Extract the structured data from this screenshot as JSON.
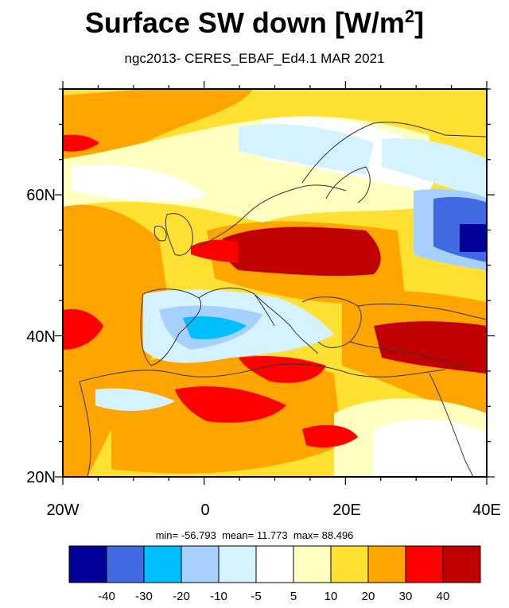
{
  "title": "Surface SW down [W/m",
  "title_sup": "2",
  "title_end": "]",
  "subtitle": "ngc2013- CERES_EBAF_Ed4.1  MAR 2021",
  "axes": {
    "lat_labels": [
      "20N",
      "40N",
      "60N"
    ],
    "lon_labels": [
      "20W",
      "0",
      "20E",
      "40E"
    ]
  },
  "stats": {
    "min_label": "min=",
    "min": "-56.793",
    "mean_label": "mean=",
    "mean": "11.773",
    "max_label": "max=",
    "max": "88.496"
  },
  "colorbar": {
    "colors": [
      "#000099",
      "#4169e1",
      "#00bfff",
      "#a6d0ff",
      "#d4f2ff",
      "#ffffff",
      "#ffffc0",
      "#ffe033",
      "#ffa500",
      "#ff0000",
      "#c00000"
    ],
    "tick_labels": [
      "-40",
      "-30",
      "-20",
      "-10",
      "-5",
      "5",
      "10",
      "20",
      "30",
      "40"
    ]
  },
  "map_extent": {
    "lon": [
      -20,
      40
    ],
    "lat": [
      20,
      75
    ]
  }
}
